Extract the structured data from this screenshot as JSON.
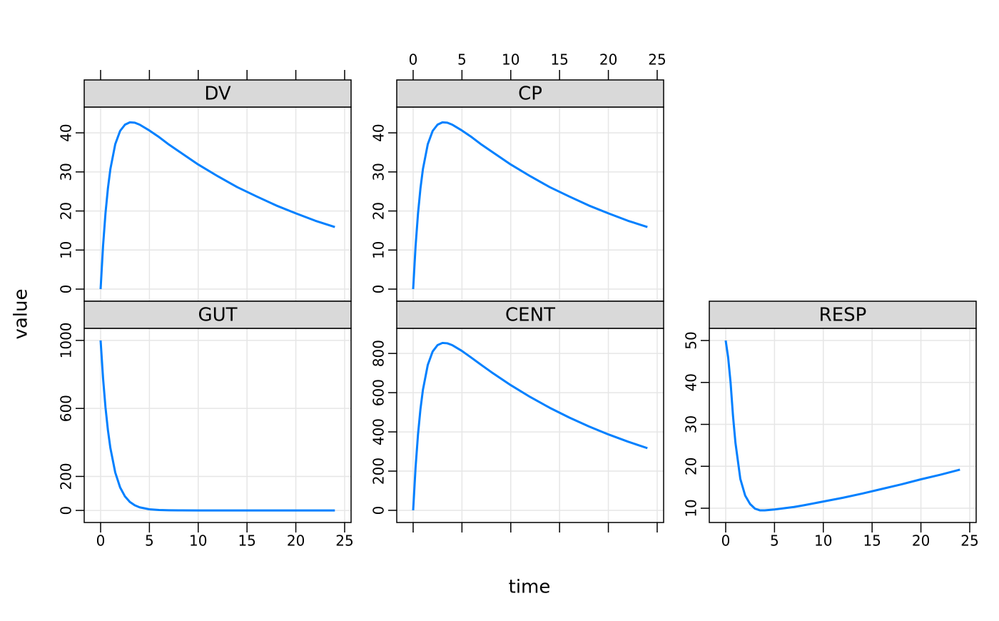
{
  "chart_data": {
    "type": "line",
    "xlabel": "time",
    "ylabel": "value",
    "color": "#0080ff",
    "grid": true,
    "x": [
      0,
      0.25,
      0.5,
      0.75,
      1,
      1.5,
      2,
      2.5,
      3,
      3.5,
      4,
      5,
      6,
      7,
      8,
      10,
      12,
      14,
      16,
      18,
      20,
      22,
      24
    ],
    "xlim": [
      -1.68,
      25.66
    ],
    "xticks": [
      0,
      5,
      10,
      15,
      20,
      25
    ],
    "panels": [
      {
        "title": "DV",
        "x_axis_side": "top",
        "x_labels": false,
        "ylim": [
          -3.1,
          46.6
        ],
        "yticks": [
          0,
          10,
          20,
          30,
          40
        ],
        "values": [
          0,
          11.0,
          19.4,
          25.8,
          30.7,
          37.1,
          40.5,
          42.1,
          42.7,
          42.6,
          42.1,
          40.6,
          38.9,
          37.0,
          35.3,
          31.9,
          28.9,
          26.1,
          23.7,
          21.4,
          19.4,
          17.5,
          15.9
        ]
      },
      {
        "title": "CP",
        "x_axis_side": "top",
        "x_labels": true,
        "ylim": [
          -3.1,
          46.6
        ],
        "yticks": [
          0,
          10,
          20,
          30,
          40
        ],
        "values": [
          0,
          11.0,
          19.4,
          25.8,
          30.7,
          37.1,
          40.5,
          42.1,
          42.7,
          42.6,
          42.1,
          40.6,
          38.9,
          37.0,
          35.3,
          31.9,
          28.9,
          26.1,
          23.7,
          21.4,
          19.4,
          17.5,
          15.9
        ]
      },
      {
        "title": "GUT",
        "x_axis_side": "bottom",
        "x_labels": true,
        "ylim": [
          -71,
          1071
        ],
        "yticks": [
          0,
          200,
          600,
          1000
        ],
        "values": [
          1000,
          778.8,
          606.5,
          472.4,
          367.9,
          223.1,
          135.3,
          82.1,
          49.8,
          30.2,
          18.3,
          6.7,
          2.5,
          0.9,
          0.3,
          0,
          0,
          0,
          0,
          0,
          0,
          0,
          0
        ]
      },
      {
        "title": "CENT",
        "x_axis_side": "bottom",
        "x_labels": false,
        "ylim": [
          -62,
          928
        ],
        "yticks": [
          0,
          200,
          400,
          600,
          800
        ],
        "values": [
          0,
          219.8,
          388.2,
          516.6,
          614.0,
          741.7,
          810.0,
          842.5,
          853.6,
          851.8,
          842.5,
          812.7,
          777.2,
          740.8,
          705.2,
          638.4,
          577.7,
          522.7,
          473.0,
          428.0,
          387.2,
          350.4,
          317.0
        ]
      },
      {
        "title": "RESP",
        "x_axis_side": "bottom",
        "x_labels": true,
        "ylim": [
          6.6,
          52.9
        ],
        "yticks": [
          10,
          20,
          30,
          40,
          50
        ],
        "values": [
          50,
          46,
          40,
          32,
          25.6,
          17,
          13,
          11,
          9.9,
          9.5,
          9.5,
          9.7,
          10.0,
          10.3,
          10.7,
          11.6,
          12.5,
          13.5,
          14.6,
          15.7,
          16.9,
          18.0,
          19.2
        ]
      }
    ]
  }
}
